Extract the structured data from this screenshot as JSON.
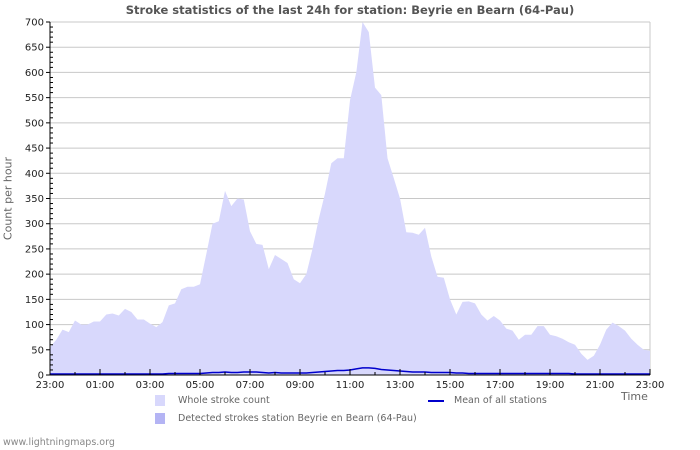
{
  "title": "Stroke statistics of the last 24h for station: Beyrie en Bearn (64-Pau)",
  "footer": "www.lightningmaps.org",
  "colors": {
    "whole_fill": "#d8d8fc",
    "detected_fill": "#b4b4f4",
    "mean_line": "#0000cc",
    "grid": "#c8c8c8",
    "axis": "#000000"
  },
  "legend": {
    "whole": "Whole stroke count",
    "detected": "Detected strokes station Beyrie en Bearn (64-Pau)",
    "mean": "Mean of all stations"
  },
  "chart_data": {
    "type": "area",
    "title": "Stroke statistics of the last 24h for station: Beyrie en Bearn (64-Pau)",
    "xlabel": "Time",
    "ylabel": "Count per hour",
    "ylim": [
      0,
      700
    ],
    "yticks": [
      0,
      50,
      100,
      150,
      200,
      250,
      300,
      350,
      400,
      450,
      500,
      550,
      600,
      650,
      700
    ],
    "xtick_labels": [
      "23:00",
      "01:00",
      "03:00",
      "05:00",
      "07:00",
      "09:00",
      "11:00",
      "13:00",
      "15:00",
      "17:00",
      "19:00",
      "21:00",
      "23:00"
    ],
    "grid": true,
    "legend_position": "bottom",
    "x_interval_minutes": 15,
    "x_start": "23:00",
    "series": [
      {
        "name": "Whole stroke count",
        "type": "area",
        "values": [
          55,
          70,
          90,
          85,
          108,
          100,
          100,
          106,
          106,
          120,
          122,
          118,
          131,
          125,
          110,
          110,
          102,
          95,
          105,
          138,
          142,
          170,
          175,
          175,
          180,
          240,
          300,
          305,
          365,
          335,
          350,
          348,
          285,
          260,
          258,
          210,
          238,
          230,
          222,
          190,
          182,
          200,
          250,
          310,
          360,
          420,
          430,
          430,
          545,
          600,
          700,
          680,
          570,
          555,
          430,
          390,
          350,
          283,
          282,
          278,
          292,
          235,
          195,
          193,
          150,
          120,
          145,
          146,
          142,
          120,
          108,
          117,
          108,
          92,
          88,
          70,
          80,
          80,
          97,
          97,
          80,
          77,
          72,
          65,
          60,
          42,
          30,
          38,
          60,
          90,
          104,
          97,
          88,
          72,
          60,
          50,
          48
        ]
      },
      {
        "name": "Detected strokes station Beyrie en Bearn (64-Pau)",
        "type": "area",
        "values": []
      },
      {
        "name": "Mean of all stations",
        "type": "line",
        "values": [
          2,
          2,
          2,
          2,
          2,
          2,
          2,
          2,
          2,
          2,
          2,
          2,
          2,
          2,
          2,
          2,
          2,
          2,
          2,
          3,
          3,
          3,
          3,
          3,
          3,
          4,
          5,
          5,
          6,
          5,
          5,
          6,
          6,
          6,
          5,
          4,
          5,
          4,
          4,
          4,
          4,
          4,
          5,
          6,
          7,
          8,
          9,
          9,
          10,
          12,
          14,
          14,
          13,
          11,
          10,
          9,
          8,
          7,
          6,
          6,
          6,
          5,
          5,
          5,
          5,
          4,
          4,
          3,
          3,
          3,
          3,
          3,
          3,
          3,
          3,
          3,
          3,
          3,
          3,
          3,
          3,
          3,
          3,
          3,
          2,
          2,
          2,
          2,
          2,
          2,
          2,
          2,
          2,
          2,
          2,
          2,
          2
        ]
      }
    ]
  }
}
